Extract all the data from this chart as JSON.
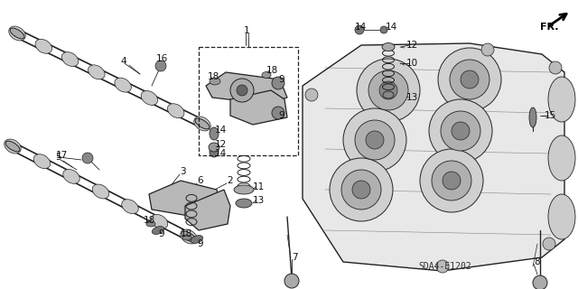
{
  "background_color": "#ffffff",
  "watermark": "SDA4-E1202",
  "fr_label": "FR.",
  "label_fontsize": 7.5,
  "watermark_fontsize": 7,
  "fr_fontsize": 8
}
